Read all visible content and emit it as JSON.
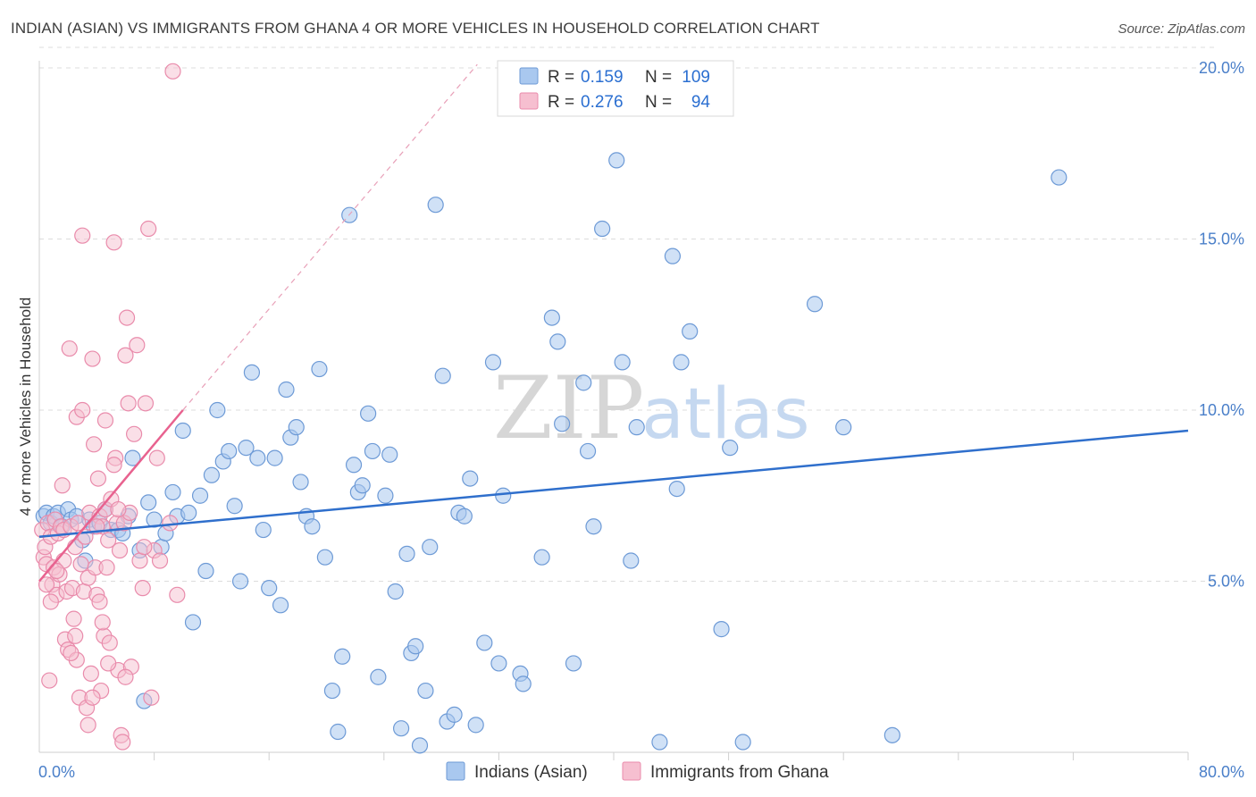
{
  "title": "INDIAN (ASIAN) VS IMMIGRANTS FROM GHANA 4 OR MORE VEHICLES IN HOUSEHOLD CORRELATION CHART",
  "source": "Source: ZipAtlas.com",
  "watermark": {
    "zip": "ZIP",
    "atlas": "atlas"
  },
  "colors": {
    "blue_fill": "#a9c8ef",
    "blue_stroke": "#6d9ad6",
    "blue_line": "#2f6fcc",
    "pink_fill": "#f6bfd0",
    "pink_stroke": "#e98bab",
    "pink_line": "#e8628f",
    "grid": "#dcdcdc",
    "tick": "#4a7fc9"
  },
  "legend": {
    "row1": {
      "r_label": "R =",
      "r_value": "0.159",
      "n_label": "N =",
      "n_value": "109"
    },
    "row2": {
      "r_label": "R =",
      "r_value": "0.276",
      "n_label": "N =",
      "n_value": "94"
    }
  },
  "bottom_legend": {
    "series1": "Indians (Asian)",
    "series2": "Immigrants from Ghana"
  },
  "chart_data": {
    "type": "scatter",
    "title": "INDIAN (ASIAN) VS IMMIGRANTS FROM GHANA 4 OR MORE VEHICLES IN HOUSEHOLD CORRELATION CHART",
    "xlabel": "",
    "ylabel": "4 or more Vehicles in Household",
    "xlim": [
      0,
      80
    ],
    "ylim": [
      0,
      20
    ],
    "x_tick_labels": [
      "0.0%",
      "80.0%"
    ],
    "y_ticks": [
      5,
      10,
      15,
      20
    ],
    "y_tick_labels": [
      "5.0%",
      "10.0%",
      "15.0%",
      "20.0%"
    ],
    "grid": true,
    "legend_position": "top-center",
    "series": [
      {
        "name": "Indians (Asian)",
        "R": 0.159,
        "N": 109,
        "trend": {
          "x": [
            0,
            80
          ],
          "y": [
            6.3,
            9.4
          ]
        },
        "points": [
          [
            0.3,
            6.9
          ],
          [
            0.5,
            7.0
          ],
          [
            0.8,
            6.7
          ],
          [
            1.0,
            6.9
          ],
          [
            1.3,
            7.0
          ],
          [
            1.6,
            6.6
          ],
          [
            2.0,
            7.1
          ],
          [
            2.2,
            6.8
          ],
          [
            2.6,
            6.9
          ],
          [
            3.0,
            6.2
          ],
          [
            3.2,
            5.6
          ],
          [
            3.5,
            6.8
          ],
          [
            3.8,
            6.6
          ],
          [
            4.2,
            6.7
          ],
          [
            4.6,
            7.1
          ],
          [
            5.0,
            6.5
          ],
          [
            5.5,
            6.5
          ],
          [
            5.8,
            6.4
          ],
          [
            6.2,
            6.9
          ],
          [
            6.5,
            8.6
          ],
          [
            7.0,
            5.9
          ],
          [
            7.3,
            1.5
          ],
          [
            7.6,
            7.3
          ],
          [
            8.0,
            6.8
          ],
          [
            8.5,
            6.0
          ],
          [
            8.8,
            6.4
          ],
          [
            9.3,
            7.6
          ],
          [
            9.6,
            6.9
          ],
          [
            10.0,
            9.4
          ],
          [
            10.4,
            7.0
          ],
          [
            10.7,
            3.8
          ],
          [
            11.2,
            7.5
          ],
          [
            11.6,
            5.3
          ],
          [
            12.0,
            8.1
          ],
          [
            12.4,
            10.0
          ],
          [
            12.8,
            8.5
          ],
          [
            13.2,
            8.8
          ],
          [
            13.6,
            7.2
          ],
          [
            14.0,
            5.0
          ],
          [
            14.4,
            8.9
          ],
          [
            14.8,
            11.1
          ],
          [
            15.2,
            8.6
          ],
          [
            15.6,
            6.5
          ],
          [
            16.0,
            4.8
          ],
          [
            16.4,
            8.6
          ],
          [
            16.8,
            4.3
          ],
          [
            17.2,
            10.6
          ],
          [
            17.5,
            9.2
          ],
          [
            17.9,
            9.5
          ],
          [
            18.2,
            7.9
          ],
          [
            18.6,
            6.9
          ],
          [
            19.0,
            6.6
          ],
          [
            19.5,
            11.2
          ],
          [
            19.9,
            5.7
          ],
          [
            20.4,
            1.8
          ],
          [
            20.8,
            0.6
          ],
          [
            21.1,
            2.8
          ],
          [
            21.6,
            15.7
          ],
          [
            21.9,
            8.4
          ],
          [
            22.2,
            7.6
          ],
          [
            22.5,
            7.8
          ],
          [
            22.9,
            9.9
          ],
          [
            23.2,
            8.8
          ],
          [
            23.6,
            2.2
          ],
          [
            24.1,
            7.5
          ],
          [
            24.4,
            8.7
          ],
          [
            24.8,
            4.7
          ],
          [
            25.2,
            0.7
          ],
          [
            25.6,
            5.8
          ],
          [
            25.9,
            2.9
          ],
          [
            26.2,
            3.1
          ],
          [
            26.5,
            0.2
          ],
          [
            26.9,
            1.8
          ],
          [
            27.2,
            6.0
          ],
          [
            27.6,
            16.0
          ],
          [
            28.1,
            11.0
          ],
          [
            28.4,
            0.9
          ],
          [
            28.9,
            1.1
          ],
          [
            29.2,
            7.0
          ],
          [
            29.6,
            6.9
          ],
          [
            30.0,
            8.0
          ],
          [
            30.4,
            0.8
          ],
          [
            31.0,
            3.2
          ],
          [
            31.6,
            11.4
          ],
          [
            32.0,
            2.6
          ],
          [
            32.3,
            7.5
          ],
          [
            33.5,
            2.3
          ],
          [
            33.7,
            2.0
          ],
          [
            35.0,
            5.7
          ],
          [
            35.7,
            12.7
          ],
          [
            36.1,
            12.0
          ],
          [
            36.4,
            9.6
          ],
          [
            37.2,
            2.6
          ],
          [
            37.9,
            10.8
          ],
          [
            38.2,
            8.8
          ],
          [
            38.6,
            6.6
          ],
          [
            39.2,
            15.3
          ],
          [
            40.2,
            17.3
          ],
          [
            40.6,
            11.4
          ],
          [
            41.2,
            5.6
          ],
          [
            41.6,
            9.5
          ],
          [
            43.2,
            0.3
          ],
          [
            44.1,
            14.5
          ],
          [
            44.4,
            7.7
          ],
          [
            44.7,
            11.4
          ],
          [
            45.3,
            12.3
          ],
          [
            47.5,
            3.6
          ],
          [
            48.1,
            8.9
          ],
          [
            49.0,
            0.3
          ],
          [
            54.0,
            13.1
          ],
          [
            56.0,
            9.5
          ],
          [
            59.4,
            0.5
          ],
          [
            71.0,
            16.8
          ]
        ]
      },
      {
        "name": "Immigrants from Ghana",
        "R": 0.276,
        "N": 94,
        "trend": {
          "x": [
            0,
            10
          ],
          "y": [
            5.0,
            10.0
          ]
        },
        "extension": {
          "x": [
            10,
            30.5
          ],
          "y": [
            10.0,
            20.1
          ]
        },
        "points": [
          [
            0.2,
            6.5
          ],
          [
            0.3,
            5.7
          ],
          [
            0.4,
            6.0
          ],
          [
            0.5,
            5.5
          ],
          [
            0.6,
            6.7
          ],
          [
            0.7,
            2.1
          ],
          [
            0.8,
            6.3
          ],
          [
            0.9,
            4.9
          ],
          [
            1.0,
            5.4
          ],
          [
            1.1,
            6.8
          ],
          [
            1.2,
            4.6
          ],
          [
            1.3,
            6.4
          ],
          [
            1.4,
            5.2
          ],
          [
            1.5,
            6.6
          ],
          [
            1.6,
            7.8
          ],
          [
            1.7,
            6.5
          ],
          [
            1.8,
            3.3
          ],
          [
            1.9,
            4.7
          ],
          [
            2.0,
            3.0
          ],
          [
            2.1,
            11.8
          ],
          [
            2.2,
            6.6
          ],
          [
            2.3,
            4.8
          ],
          [
            2.4,
            3.9
          ],
          [
            2.5,
            6.0
          ],
          [
            2.6,
            2.7
          ],
          [
            2.7,
            6.7
          ],
          [
            2.8,
            1.6
          ],
          [
            2.9,
            5.5
          ],
          [
            3.0,
            15.1
          ],
          [
            3.1,
            4.7
          ],
          [
            3.2,
            6.3
          ],
          [
            3.3,
            1.3
          ],
          [
            3.4,
            5.1
          ],
          [
            3.5,
            7.0
          ],
          [
            3.6,
            2.3
          ],
          [
            3.7,
            11.5
          ],
          [
            3.8,
            9.0
          ],
          [
            3.9,
            5.4
          ],
          [
            4.0,
            4.6
          ],
          [
            4.1,
            8.0
          ],
          [
            4.2,
            6.9
          ],
          [
            4.3,
            1.8
          ],
          [
            4.4,
            6.6
          ],
          [
            4.5,
            3.4
          ],
          [
            4.6,
            7.1
          ],
          [
            4.7,
            5.4
          ],
          [
            4.8,
            6.2
          ],
          [
            4.9,
            3.2
          ],
          [
            5.0,
            7.4
          ],
          [
            5.2,
            14.9
          ],
          [
            5.3,
            8.6
          ],
          [
            5.4,
            6.7
          ],
          [
            5.5,
            2.4
          ],
          [
            5.6,
            5.9
          ],
          [
            5.7,
            0.5
          ],
          [
            5.8,
            0.3
          ],
          [
            5.9,
            6.7
          ],
          [
            6.0,
            11.6
          ],
          [
            6.1,
            12.7
          ],
          [
            6.2,
            10.2
          ],
          [
            6.3,
            7.0
          ],
          [
            6.4,
            2.5
          ],
          [
            6.6,
            9.3
          ],
          [
            6.8,
            11.9
          ],
          [
            7.0,
            5.6
          ],
          [
            7.2,
            4.8
          ],
          [
            7.4,
            10.2
          ],
          [
            7.6,
            15.3
          ],
          [
            7.8,
            1.6
          ],
          [
            8.0,
            5.9
          ],
          [
            8.2,
            8.6
          ],
          [
            8.4,
            5.6
          ],
          [
            9.1,
            6.7
          ],
          [
            9.3,
            19.9
          ],
          [
            9.6,
            4.6
          ],
          [
            2.6,
            9.8
          ],
          [
            3.0,
            10.0
          ],
          [
            4.6,
            9.7
          ],
          [
            5.2,
            8.4
          ],
          [
            5.5,
            7.1
          ],
          [
            4.2,
            4.4
          ],
          [
            4.8,
            2.6
          ],
          [
            3.7,
            1.6
          ],
          [
            3.4,
            0.8
          ],
          [
            2.5,
            3.4
          ],
          [
            2.2,
            2.9
          ],
          [
            1.7,
            5.6
          ],
          [
            1.2,
            5.3
          ],
          [
            0.8,
            4.4
          ],
          [
            0.5,
            4.9
          ],
          [
            4.0,
            6.6
          ],
          [
            4.4,
            3.8
          ],
          [
            6.0,
            2.2
          ],
          [
            7.3,
            6.0
          ]
        ]
      }
    ]
  }
}
